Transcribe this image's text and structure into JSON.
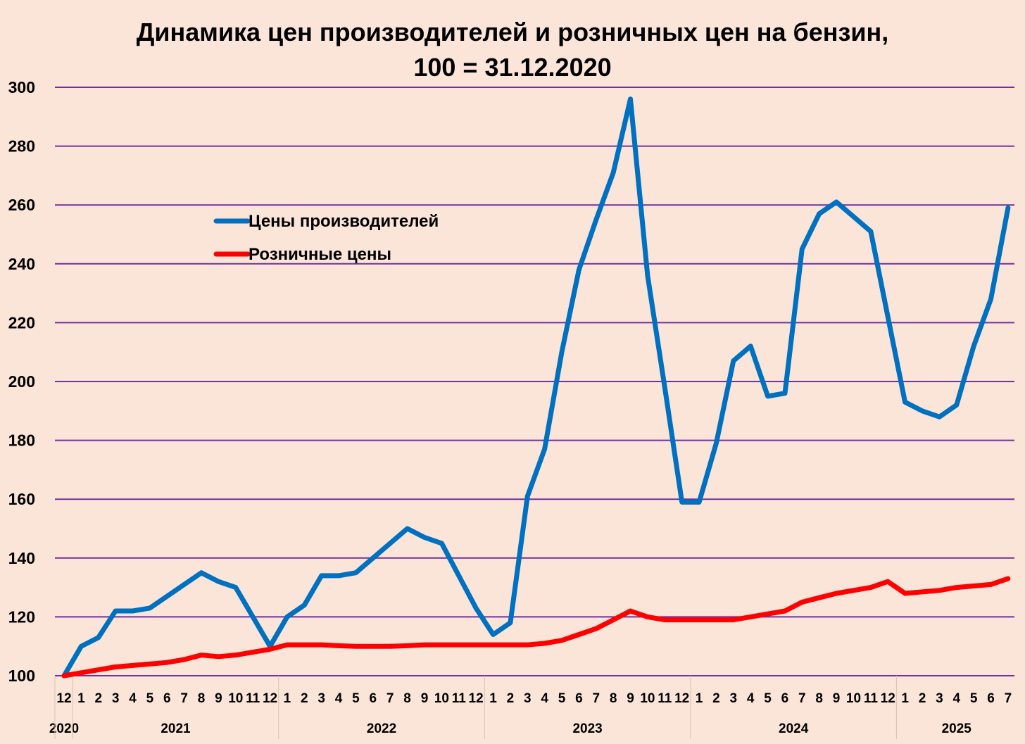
{
  "chart_data": {
    "type": "line",
    "title": "Динамика цен производителей и розничных цен на бензин,",
    "subtitle": "100 = 31.12.2020",
    "ylim": [
      100,
      300
    ],
    "yticks": [
      100,
      120,
      140,
      160,
      180,
      200,
      220,
      240,
      260,
      280,
      300
    ],
    "grid": true,
    "legend_position": "top-left",
    "month_labels": [
      "12",
      "1",
      "2",
      "3",
      "4",
      "5",
      "6",
      "7",
      "8",
      "9",
      "10",
      "11",
      "12",
      "1",
      "2",
      "3",
      "4",
      "5",
      "6",
      "7",
      "8",
      "9",
      "10",
      "11",
      "12",
      "1",
      "2",
      "3",
      "4",
      "5",
      "6",
      "7",
      "8",
      "9",
      "10",
      "11",
      "12",
      "1",
      "2",
      "3",
      "4",
      "5",
      "6",
      "7",
      "8",
      "9",
      "10",
      "11",
      "12",
      "1",
      "2",
      "3",
      "4",
      "5",
      "6",
      "7"
    ],
    "year_groups": [
      {
        "label": "2020",
        "start": 0,
        "end": 0
      },
      {
        "label": "2021",
        "start": 1,
        "end": 12
      },
      {
        "label": "2022",
        "start": 13,
        "end": 24
      },
      {
        "label": "2023",
        "start": 25,
        "end": 36
      },
      {
        "label": "2024",
        "start": 37,
        "end": 48
      },
      {
        "label": "2025",
        "start": 49,
        "end": 55
      }
    ],
    "series": [
      {
        "name": "Цены производителей",
        "color": "#0070c0",
        "values": [
          100,
          110,
          113,
          122,
          122,
          123,
          127,
          131,
          135,
          132,
          130,
          120,
          110,
          120,
          124,
          134,
          134,
          135,
          140,
          145,
          150,
          147,
          145,
          134,
          123,
          114,
          118,
          161,
          177,
          210,
          238,
          255,
          271,
          296,
          236,
          198,
          159,
          159,
          179,
          207,
          212,
          195,
          196,
          245,
          257,
          261,
          256,
          251,
          222,
          193,
          190,
          188,
          192,
          212,
          228,
          259
        ]
      },
      {
        "name": "Розничные цены",
        "color": "#ff0000",
        "values": [
          100,
          101,
          102,
          103,
          103.5,
          104,
          104.5,
          105.5,
          107,
          106.5,
          107,
          108,
          109,
          110.5,
          110.5,
          110.5,
          110.2,
          110,
          110,
          110,
          110.2,
          110.5,
          110.5,
          110.5,
          110.5,
          110.5,
          110.5,
          110.5,
          111,
          112,
          114,
          116,
          119,
          122,
          120,
          119,
          119,
          119,
          119,
          119,
          120,
          121,
          122,
          125,
          126.5,
          128,
          129,
          130,
          132,
          128,
          128.5,
          129,
          130,
          130.5,
          131,
          133
        ]
      }
    ]
  }
}
